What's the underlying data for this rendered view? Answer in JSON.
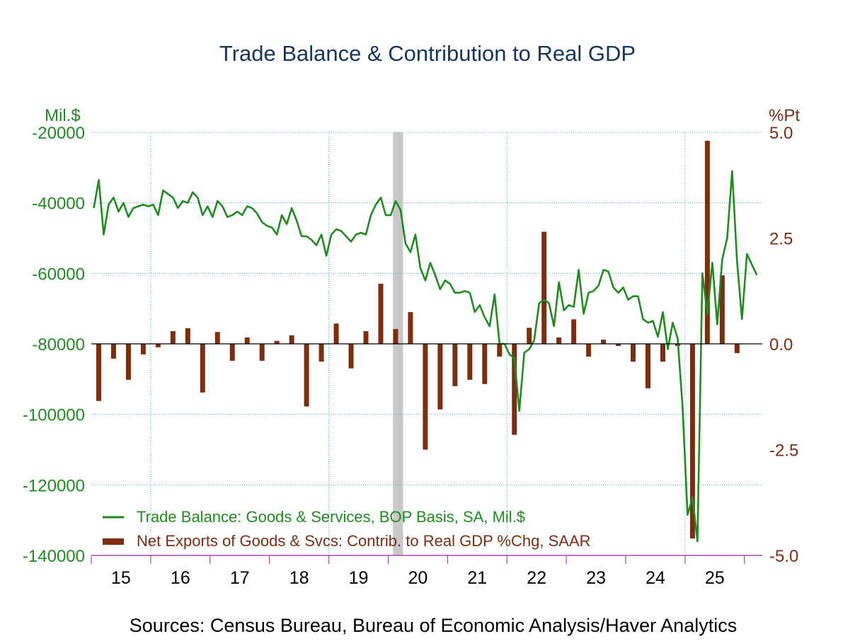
{
  "chart_data": {
    "title": "Trade Balance & Contribution to Real GDP",
    "source": "Sources:  Census Bureau, Bureau of Economic Analysis/Haver Analytics",
    "left_axis": {
      "unit": "Mil.$",
      "range": [
        -140000,
        -20000
      ],
      "ticks": [
        -20000,
        -40000,
        -60000,
        -80000,
        -100000,
        -120000,
        -140000
      ],
      "tick_labels": [
        "-20000",
        "-40000",
        "-60000",
        "-80000",
        "-100000",
        "-120000",
        "-140000"
      ]
    },
    "right_axis": {
      "unit": "%Pt",
      "range": [
        -5.0,
        5.0
      ],
      "ticks": [
        5.0,
        2.5,
        0.0,
        -2.5,
        -5.0
      ],
      "tick_labels": [
        "5.0",
        "2.5",
        "0.0",
        "-2.5",
        "-5.0"
      ]
    },
    "x_axis": {
      "start_year": 2015,
      "end_year": 2025.9,
      "year_labels": [
        "15",
        "16",
        "17",
        "18",
        "19",
        "20",
        "21",
        "22",
        "23",
        "24",
        "25"
      ]
    },
    "recession": {
      "start": 2020.08,
      "end": 2020.25
    },
    "colors": {
      "line": "#1e8c1e",
      "bars": "#7e2d0e",
      "title": "#14365e",
      "grid": "#3fb4c8",
      "axis": "#a14aa8"
    },
    "legend": {
      "line_label": "Trade Balance: Goods & Services, BOP Basis, SA, Mil.$",
      "bar_label": "Net Exports of Goods & Svcs: Contrib. to Real GDP %Chg, SAAR"
    },
    "series": [
      {
        "name": "Trade Balance: Goods & Services, BOP Basis, SA, Mil.$",
        "type": "line",
        "axis": "left",
        "start": 2015.0,
        "step_months": 1,
        "values": [
          -41500,
          -33500,
          -49000,
          -40500,
          -38500,
          -42500,
          -40000,
          -44000,
          -41500,
          -41000,
          -40500,
          -41000,
          -40500,
          -43500,
          -36500,
          -37500,
          -38500,
          -41500,
          -39500,
          -40000,
          -37000,
          -38500,
          -43500,
          -41000,
          -44000,
          -39500,
          -41000,
          -44000,
          -43500,
          -42500,
          -43500,
          -41000,
          -41500,
          -43000,
          -45500,
          -46500,
          -47000,
          -49000,
          -43500,
          -46000,
          -41500,
          -45000,
          -49500,
          -49500,
          -50500,
          -52000,
          -49000,
          -55000,
          -49000,
          -47500,
          -48000,
          -49500,
          -51000,
          -49000,
          -48500,
          -49000,
          -43500,
          -40500,
          -38500,
          -43500,
          -43500,
          -39500,
          -42000,
          -51500,
          -54000,
          -49000,
          -58500,
          -62000,
          -57000,
          -60500,
          -64500,
          -62000,
          -63000,
          -65500,
          -65500,
          -65000,
          -65500,
          -71000,
          -69000,
          -72500,
          -75000,
          -66000,
          -80000,
          -80000,
          -83000,
          -84000,
          -99000,
          -82500,
          -81500,
          -79000,
          -68500,
          -67500,
          -68500,
          -75000,
          -62500,
          -70500,
          -69000,
          -69500,
          -59000,
          -71500,
          -65500,
          -65000,
          -63500,
          -59000,
          -59500,
          -64000,
          -65500,
          -64000,
          -67500,
          -66500,
          -66500,
          -73000,
          -74000,
          -73500,
          -78000,
          -71000,
          -81500,
          -74000,
          -78500,
          -98000,
          -128500,
          -123500,
          -136000,
          -60000,
          -71500,
          -57000,
          -74500,
          -56000,
          -50000,
          -31000,
          -56500,
          -73000,
          -54500,
          -57500,
          -60500
        ]
      },
      {
        "name": "Net Exports of Goods & Svcs: Contrib. to Real GDP %Chg, SAAR",
        "type": "bar",
        "axis": "right",
        "x": [
          2015.125,
          2015.375,
          2015.625,
          2015.875,
          2016.125,
          2016.375,
          2016.625,
          2016.875,
          2017.125,
          2017.375,
          2017.625,
          2017.875,
          2018.125,
          2018.375,
          2018.625,
          2018.875,
          2019.125,
          2019.375,
          2019.625,
          2019.875,
          2020.125,
          2020.375,
          2020.625,
          2020.875,
          2021.125,
          2021.375,
          2021.625,
          2021.875,
          2022.125,
          2022.375,
          2022.625,
          2022.875,
          2023.125,
          2023.375,
          2023.625,
          2023.875,
          2024.125,
          2024.375,
          2024.625,
          2024.875,
          2025.125,
          2025.375,
          2025.625,
          2025.875
        ],
        "values": [
          -1.35,
          -0.35,
          -0.85,
          -0.25,
          -0.08,
          0.3,
          0.37,
          -1.15,
          0.28,
          -0.4,
          0.15,
          -0.4,
          0.07,
          0.2,
          -1.48,
          -0.42,
          0.48,
          -0.58,
          0.3,
          1.42,
          0.35,
          0.75,
          -2.5,
          -1.55,
          -1.0,
          -0.85,
          -0.95,
          -0.3,
          -2.15,
          0.38,
          2.65,
          0.15,
          0.58,
          -0.3,
          0.1,
          -0.05,
          -0.42,
          -1.05,
          -0.42,
          -0.05,
          -4.6,
          4.8,
          1.62,
          -0.22
        ]
      }
    ]
  }
}
